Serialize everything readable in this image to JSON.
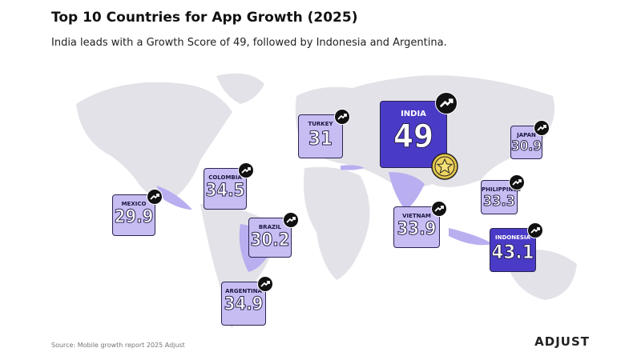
{
  "title": "Top 10 Countries for App Growth (2025)",
  "subtitle": "India leads with a Growth Score of 49, followed by Indonesia and Argentina.",
  "countries": [
    {
      "name": "INDIA",
      "score": 49
    },
    {
      "name": "TURKEY",
      "score": 31
    },
    {
      "name": "JAPAN",
      "score": 30.9
    },
    {
      "name": "COLOMBIA",
      "score": 34.5
    },
    {
      "name": "MEXICO",
      "score": 29.9
    },
    {
      "name": "PHILIPPINES",
      "score": 33.3
    },
    {
      "name": "VIETNAM",
      "score": 33.9
    },
    {
      "name": "BRAZIL",
      "score": 30.2
    },
    {
      "name": "INDONESIA",
      "score": 43.1
    },
    {
      "name": "ARGENTINA",
      "score": 34.9
    }
  ],
  "source": "Source: Mobile growth report 2025 Adjust",
  "logo": "ADJUST"
}
